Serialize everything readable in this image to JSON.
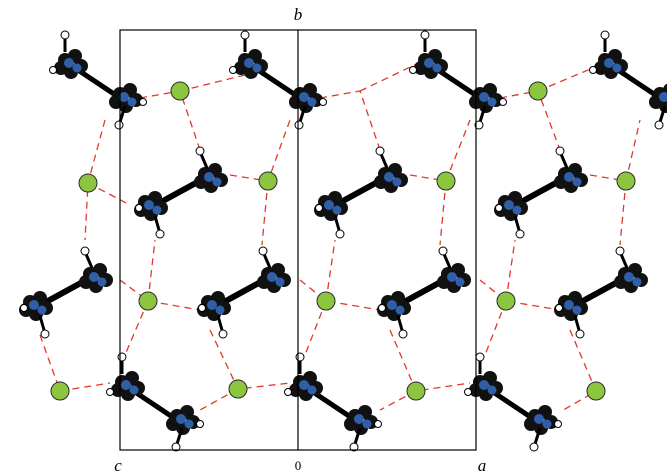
{
  "labels": {
    "b": "b",
    "c": "c",
    "origin": "0",
    "a": "a"
  }
}
